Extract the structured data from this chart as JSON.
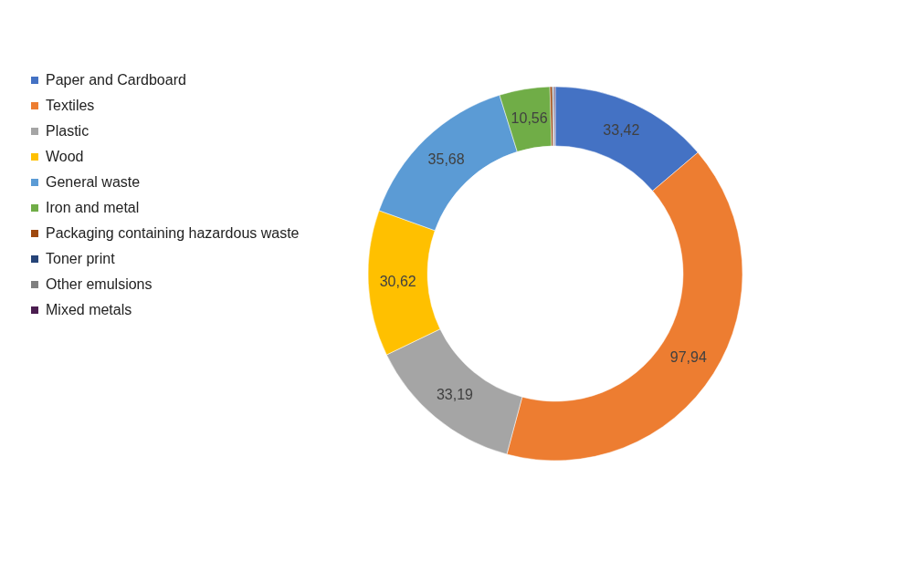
{
  "chart_data": {
    "type": "donut",
    "categories": [
      "Paper and Cardboard",
      "Textiles",
      "Plastic",
      "Wood",
      "General waste",
      "Iron and metal",
      "Packaging containing hazardous waste",
      "Toner print",
      "Other emulsions",
      "Mixed metals"
    ],
    "values": [
      33.42,
      97.94,
      33.19,
      30.62,
      35.68,
      10.56,
      0.5,
      0.2,
      0.2,
      0.2
    ],
    "value_labels": [
      "33,42",
      "97,94",
      "33,19",
      "30,62",
      "35,68",
      "10,56",
      null,
      null,
      null,
      null
    ],
    "colors": [
      "#4472c4",
      "#ed7d31",
      "#a5a5a5",
      "#ffc000",
      "#5b9bd5",
      "#70ad47",
      "#9e480e",
      "#264478",
      "#7f7f7f",
      "#4b1d50"
    ],
    "legend": "left"
  }
}
